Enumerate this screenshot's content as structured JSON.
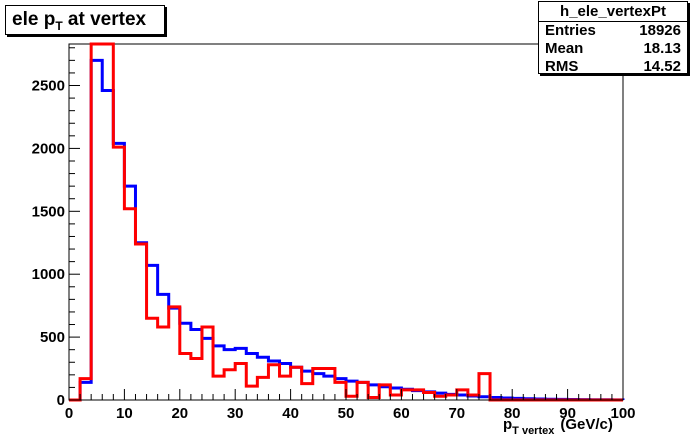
{
  "title": {
    "main": "ele p",
    "sub": "T",
    "rest": " at vertex"
  },
  "stats": {
    "name": "h_ele_vertexPt",
    "rows": [
      {
        "label": "Entries",
        "value": "18926"
      },
      {
        "label": "Mean",
        "value": "18.13"
      },
      {
        "label": "RMS",
        "value": "14.52"
      }
    ]
  },
  "xlabel": {
    "main": "p",
    "sub": "T vertex",
    "rest": "(GeV/c)"
  },
  "chart_data": {
    "type": "line",
    "subtype": "step-histogram",
    "xlim": [
      0,
      100
    ],
    "ylim": [
      0,
      2830
    ],
    "x_ticks": [
      0,
      10,
      20,
      30,
      40,
      50,
      60,
      70,
      80,
      90,
      100
    ],
    "y_ticks": [
      0,
      500,
      1000,
      1500,
      2000,
      2500
    ],
    "bin_width": 2,
    "bin_edges_start": 0,
    "series": [
      {
        "color": "#0000ff",
        "values": [
          0,
          140,
          2700,
          2460,
          2040,
          1700,
          1250,
          1070,
          840,
          730,
          610,
          560,
          490,
          430,
          400,
          410,
          370,
          340,
          310,
          290,
          260,
          230,
          210,
          190,
          170,
          150,
          140,
          120,
          105,
          95,
          85,
          75,
          65,
          55,
          45,
          40,
          32,
          26,
          20,
          16,
          13,
          10,
          8,
          6,
          5,
          4,
          3,
          2,
          2,
          1
        ]
      },
      {
        "color": "#ff0000",
        "values": [
          0,
          170,
          2830,
          2830,
          2010,
          1520,
          1240,
          650,
          580,
          740,
          370,
          330,
          580,
          190,
          240,
          290,
          110,
          180,
          280,
          190,
          260,
          130,
          250,
          250,
          140,
          30,
          140,
          20,
          120,
          40,
          80,
          80,
          60,
          30,
          40,
          80,
          40,
          210,
          0,
          0,
          0,
          0,
          0,
          0,
          0,
          0,
          0,
          0,
          0,
          0
        ]
      }
    ]
  }
}
